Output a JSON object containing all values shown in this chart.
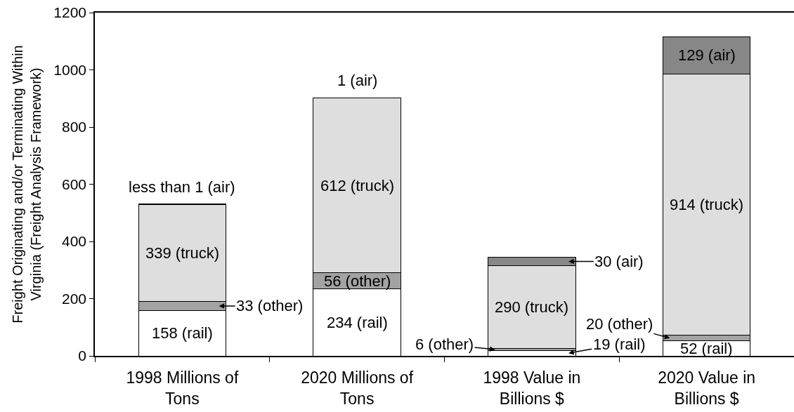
{
  "chart_data": {
    "type": "bar",
    "stacked": true,
    "categories": [
      "1998 Millions of\nTons",
      "2020 Millions of\nTons",
      "1998 Value in\nBillions $",
      "2020 Value in\nBillions $"
    ],
    "ylabel": "Freight Originating and/or Terminating Within\nVirginia (Freight Analysis Framework)",
    "ylim": [
      0,
      1200
    ],
    "yticks": [
      0,
      200,
      400,
      600,
      800,
      1000,
      1200
    ],
    "series": [
      {
        "color": "#ffffff",
        "values": [
          158,
          234,
          19,
          52
        ],
        "value_labels": [
          "158 (rail)",
          "234 (rail)",
          "19 (rail)",
          "52 (rail)"
        ]
      },
      {
        "color": "#a3a3a3",
        "values": [
          33,
          56,
          6,
          20
        ],
        "value_labels": [
          "33 (other)",
          "56 (other)",
          "6 (other)",
          "20 (other)"
        ]
      },
      {
        "color": "#dedede",
        "values": [
          339,
          612,
          290,
          914
        ],
        "value_labels": [
          "339 (truck)",
          "612 (truck)",
          "290 (truck)",
          "914 (truck)"
        ]
      },
      {
        "color": "#878787",
        "values": [
          0.5,
          1,
          30,
          129
        ],
        "value_labels": [
          "less than 1 (air)",
          "1 (air)",
          "30 (air)",
          "129 (air)"
        ]
      }
    ]
  }
}
